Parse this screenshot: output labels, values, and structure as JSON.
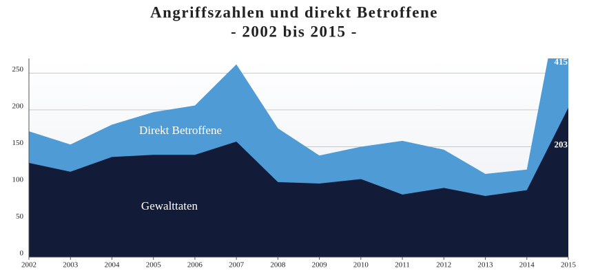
{
  "chart_data": {
    "type": "area",
    "title": "Angriffszahlen und direkt Betroffene",
    "subtitle": "- 2002 bis 2015 -",
    "categories": [
      "2002",
      "2003",
      "2004",
      "2005",
      "2006",
      "2007",
      "2008",
      "2009",
      "2010",
      "2011",
      "2012",
      "2013",
      "2014",
      "2015"
    ],
    "series": [
      {
        "name": "Direkt Betroffene",
        "color": "#4f9bd5",
        "values": [
          171,
          153,
          180,
          197,
          206,
          262,
          175,
          138,
          150,
          158,
          146,
          113,
          119,
          415
        ]
      },
      {
        "name": "Gewalttaten",
        "color": "#121c38",
        "values": [
          128,
          116,
          136,
          139,
          139,
          157,
          102,
          100,
          106,
          85,
          94,
          83,
          91,
          203
        ]
      }
    ],
    "ylim": [
      0,
      270
    ],
    "yticks": [
      0,
      50,
      100,
      150,
      200,
      250
    ],
    "grid": true
  }
}
